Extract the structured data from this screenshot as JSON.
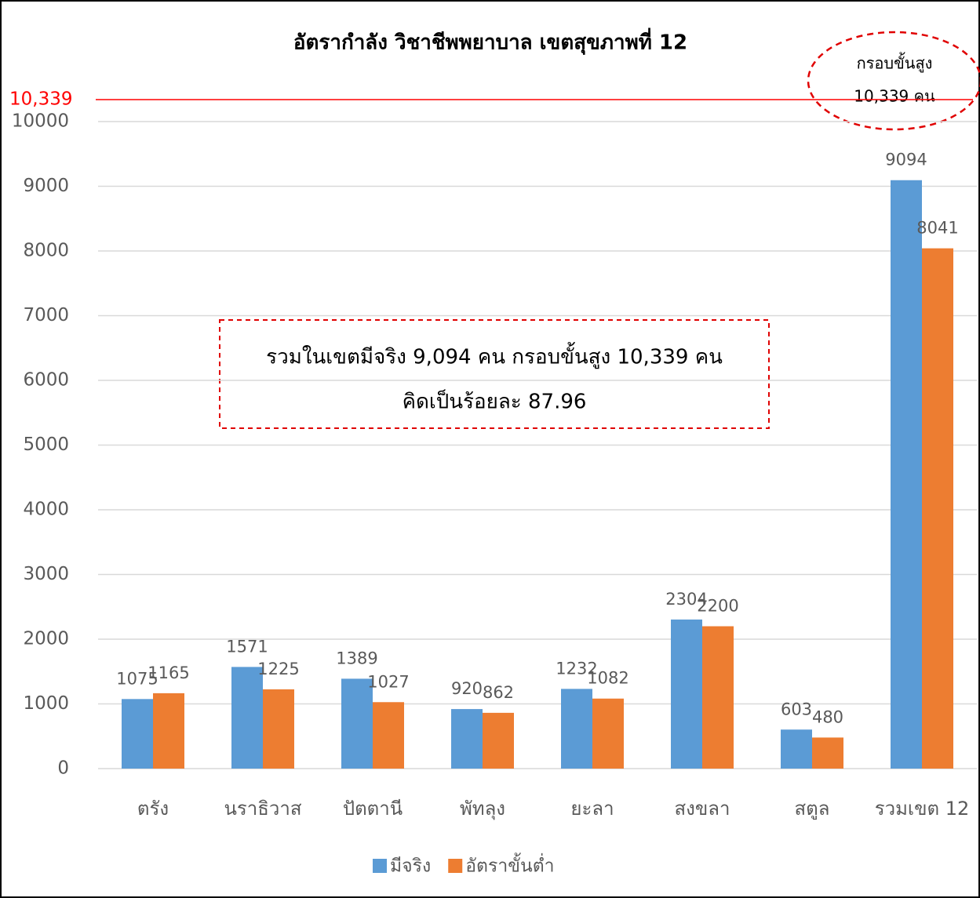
{
  "chart_data": {
    "type": "bar",
    "title": "อัตรากำลัง วิชาชีพพยาบาล เขตสุขภาพที่ 12",
    "categories": [
      "ตรัง",
      "นราธิวาส",
      "ปัตตานี",
      "พัทลุง",
      "ยะลา",
      "สงขลา",
      "สตูล",
      "รวมเขต 12"
    ],
    "series": [
      {
        "name": "มีจริง",
        "color": "#5b9bd5",
        "values": [
          1075,
          1571,
          1389,
          920,
          1232,
          2304,
          603,
          9094
        ]
      },
      {
        "name": "อัตราขั้นต่ำ",
        "color": "#ed7d31",
        "values": [
          1165,
          1225,
          1027,
          862,
          1082,
          2200,
          480,
          8041
        ]
      }
    ],
    "ylim": [
      0,
      10000
    ],
    "yticks": [
      0,
      1000,
      2000,
      3000,
      4000,
      5000,
      6000,
      7000,
      8000,
      9000,
      10000
    ],
    "grid": true,
    "legend": "bottom",
    "reference_line": {
      "value": 10339,
      "label": "10,339",
      "color": "#ff0000"
    },
    "callout": [
      "กรอบขั้นสูง",
      "10,339 คน"
    ],
    "note": [
      "รวมในเขตมีจริง 9,094 คน กรอบขั้นสูง 10,339 คน",
      "คิดเป็นร้อยละ 87.96"
    ]
  }
}
